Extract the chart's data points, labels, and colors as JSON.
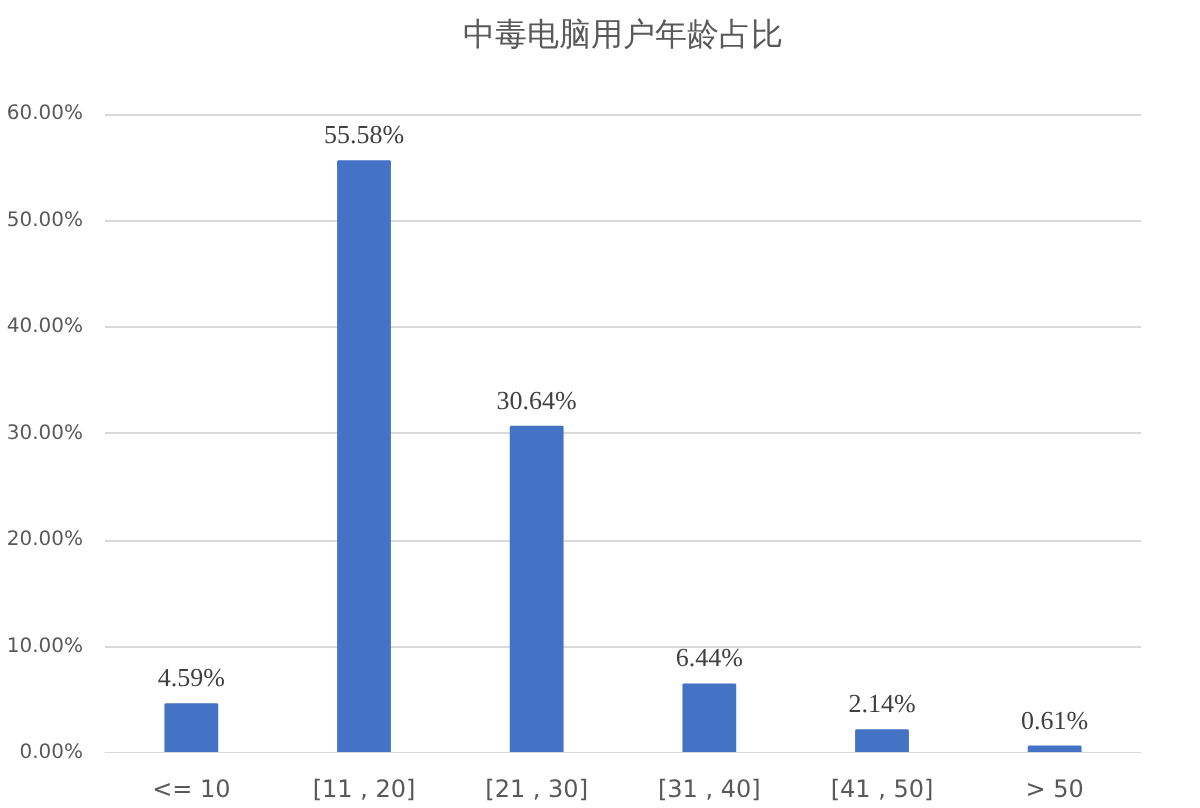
{
  "chart_data": {
    "type": "bar",
    "title": "中毒电脑用户年龄占比",
    "categories": [
      "<= 10",
      "[11 , 20]",
      "[21 , 30]",
      "[31 , 40]",
      "[41 , 50]",
      "> 50"
    ],
    "values": [
      4.59,
      55.58,
      30.64,
      6.44,
      2.14,
      0.61
    ],
    "value_labels": [
      "4.59%",
      "55.58%",
      "30.64%",
      "6.44%",
      "2.14%",
      "0.61%"
    ],
    "color": "#4472c4",
    "ylim": [
      0,
      60
    ],
    "yticks": [
      {
        "value": 0,
        "label": "0.00%"
      },
      {
        "value": 10,
        "label": "10.00%"
      },
      {
        "value": 20,
        "label": "20.00%"
      },
      {
        "value": 30,
        "label": "30.00%"
      },
      {
        "value": 40,
        "label": "40.00%"
      },
      {
        "value": 50,
        "label": "50.00%"
      },
      {
        "value": 60,
        "label": "60.00%"
      }
    ],
    "grid": "y"
  }
}
